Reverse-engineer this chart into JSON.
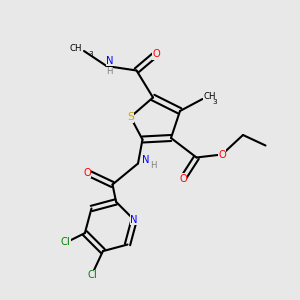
{
  "bg_color": "#e8e8e8",
  "atom_colors": {
    "C": "#000000",
    "H": "#808080",
    "N": "#0000ff",
    "O": "#ff0000",
    "S": "#ccaa00",
    "Cl": "#008000"
  },
  "bond_color": "#000000"
}
